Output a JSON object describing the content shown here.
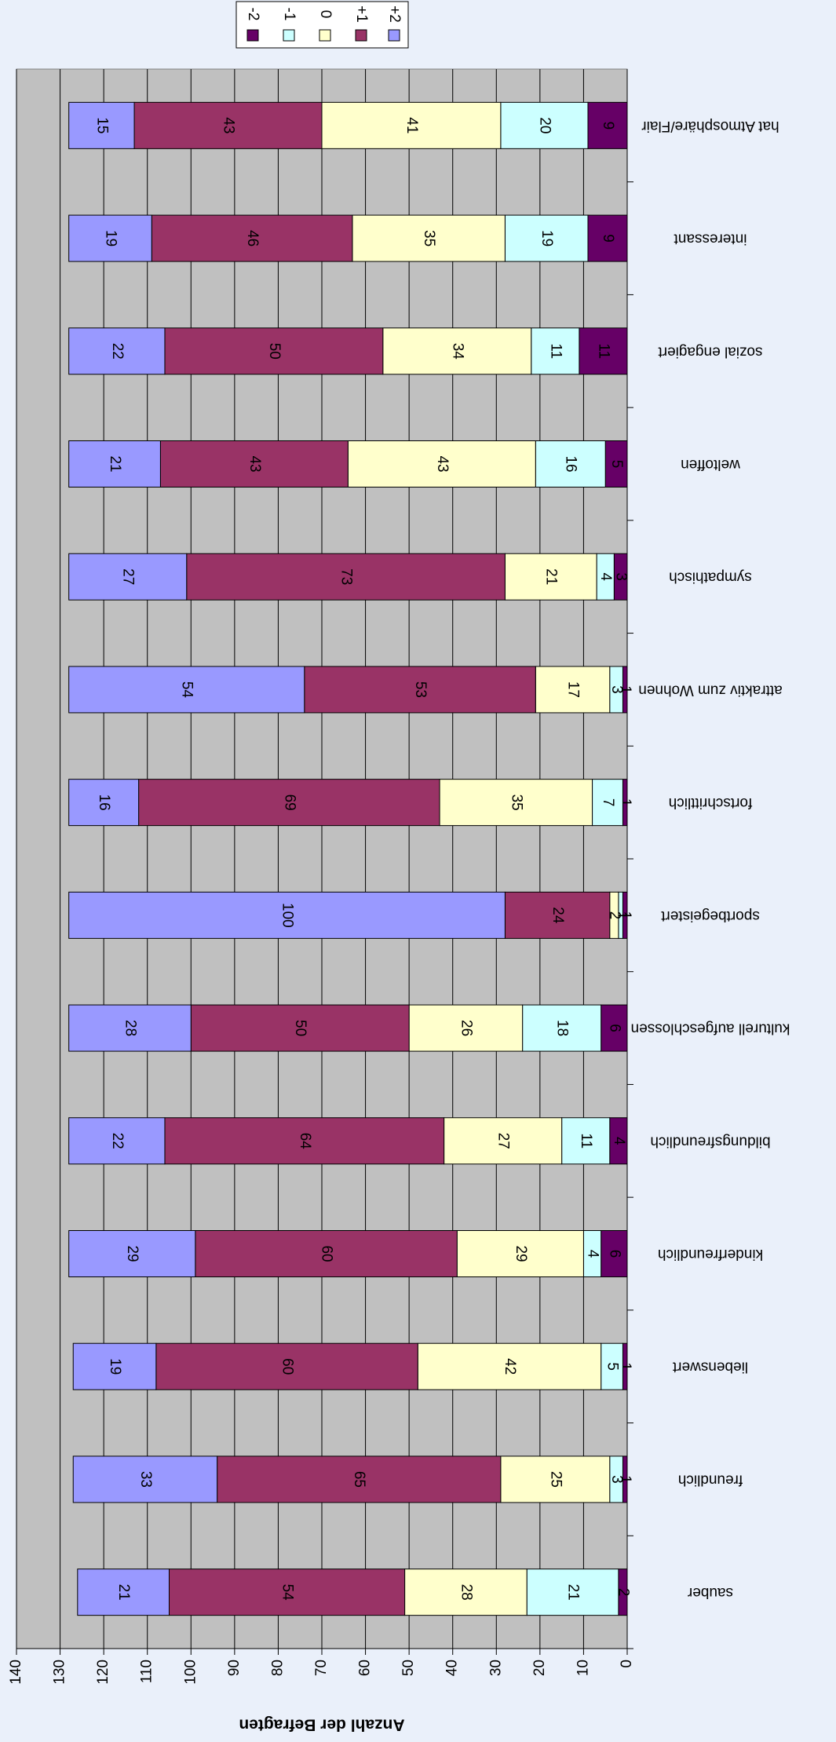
{
  "chart_data": {
    "type": "stacked_bar",
    "ylabel": "Anzahl der Befragten",
    "categories": [
      "sauber",
      "freundlich",
      "liebenswert",
      "kinderfreundlich",
      "bildungsfreundlich",
      "kulturell aufgeschlossen",
      "sportbegeistert",
      "fortschrittlich",
      "attraktiv zum Wohnen",
      "sympathisch",
      "weltoffen",
      "sozial engagiert",
      "interessant",
      "hat Atmosphäre/Flair"
    ],
    "series": [
      {
        "name": "-2",
        "color": "#660066",
        "values": [
          2,
          1,
          1,
          6,
          4,
          6,
          1,
          1,
          1,
          3,
          5,
          11,
          9,
          9
        ]
      },
      {
        "name": "-1",
        "color": "#ccffff",
        "values": [
          21,
          3,
          5,
          4,
          11,
          18,
          1,
          7,
          3,
          4,
          16,
          11,
          19,
          20
        ]
      },
      {
        "name": "0",
        "color": "#ffffcc",
        "values": [
          28,
          25,
          42,
          29,
          27,
          26,
          2,
          35,
          17,
          21,
          43,
          34,
          35,
          41
        ]
      },
      {
        "name": "+1",
        "color": "#993366",
        "values": [
          54,
          65,
          60,
          60,
          64,
          50,
          24,
          69,
          53,
          73,
          43,
          50,
          46,
          43
        ]
      },
      {
        "name": "+2",
        "color": "#9999ff",
        "values": [
          21,
          33,
          19,
          29,
          22,
          28,
          100,
          16,
          54,
          27,
          21,
          22,
          19,
          15
        ]
      }
    ],
    "ylim": [
      0,
      140
    ],
    "yticks": [
      0,
      10,
      20,
      30,
      40,
      50,
      60,
      70,
      80,
      90,
      100,
      110,
      120,
      130,
      140
    ],
    "grid": true
  }
}
